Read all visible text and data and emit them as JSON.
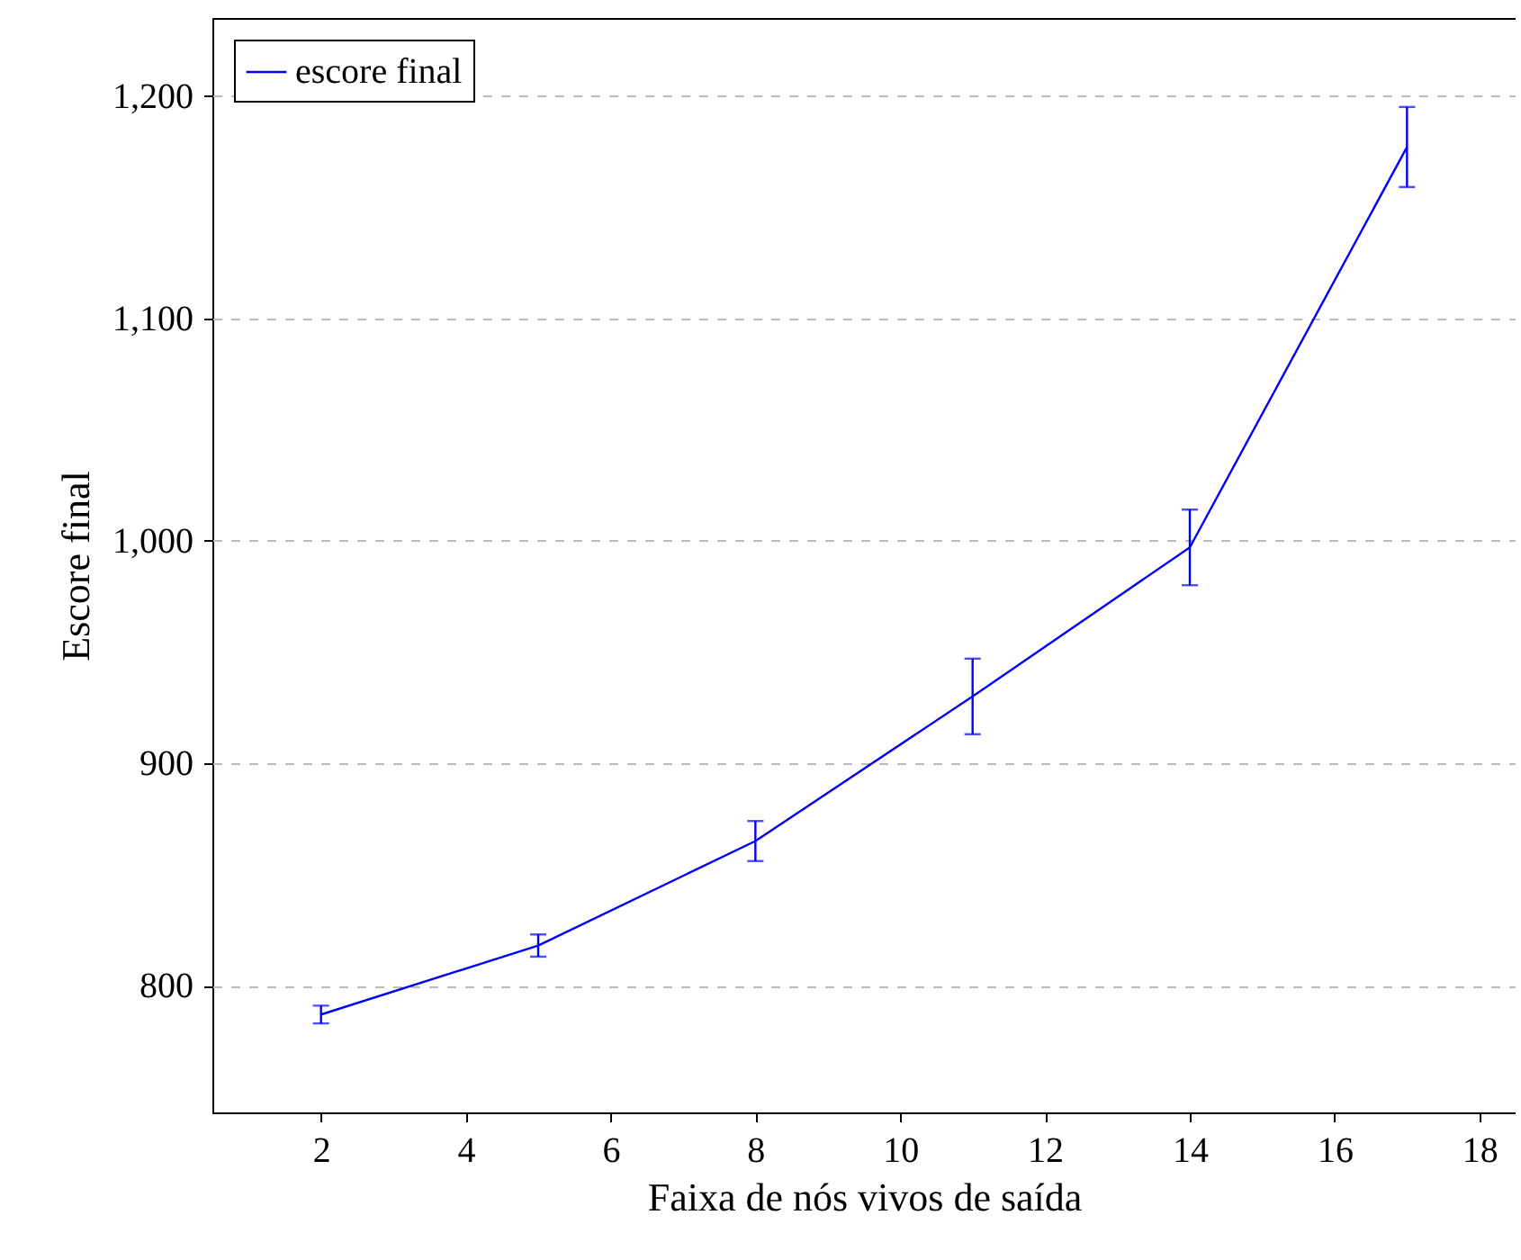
{
  "chart_data": {
    "type": "line",
    "xlabel": "Faixa de nós vivos de saída",
    "ylabel": "Escore final",
    "x": [
      2,
      5,
      8,
      11,
      14,
      17
    ],
    "series": [
      {
        "name": "escore final",
        "color": "#0000ff",
        "values": [
          787,
          818,
          865,
          930,
          997,
          1177
        ],
        "errors": [
          4,
          5,
          9,
          17,
          17,
          18
        ]
      }
    ],
    "xlim": [
      0.5,
      18.5
    ],
    "xticks": [
      2,
      4,
      6,
      8,
      10,
      12,
      14,
      16,
      18
    ],
    "ylim": [
      743,
      1235
    ],
    "yticks": [
      {
        "value": 800,
        "label": "800"
      },
      {
        "value": 900,
        "label": "900"
      },
      {
        "value": 1000,
        "label": "1,000"
      },
      {
        "value": 1100,
        "label": "1,100"
      },
      {
        "value": 1200,
        "label": "1,200"
      }
    ],
    "grid": "y",
    "legend": "top left",
    "marker": "none",
    "line_style": "solid"
  }
}
